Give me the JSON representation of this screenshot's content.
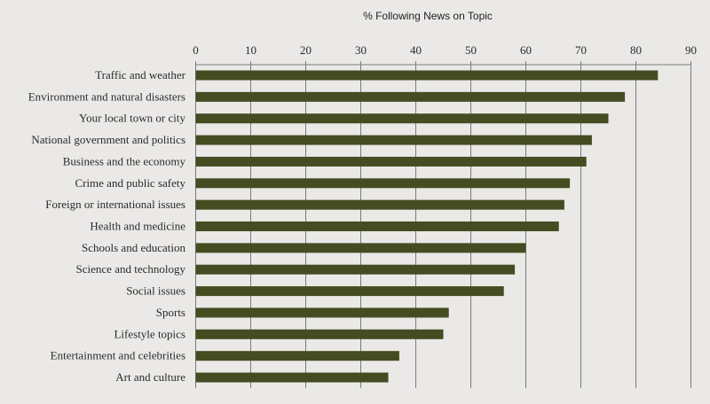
{
  "chart_data": {
    "type": "bar",
    "orientation": "horizontal",
    "title": "% Following News on Topic",
    "xlabel": "",
    "ylabel": "",
    "xlim": [
      0,
      90
    ],
    "xticks": [
      0,
      10,
      20,
      30,
      40,
      50,
      60,
      70,
      80,
      90
    ],
    "grid": true,
    "categories": [
      "Traffic and weather",
      "Environment and natural disasters",
      "Your local town or city",
      "National government and politics",
      "Business and the economy",
      "Crime and public safety",
      "Foreign or international issues",
      "Health and medicine",
      "Schools and education",
      "Science and technology",
      "Social issues",
      "Sports",
      "Lifestyle topics",
      "Entertainment and celebrities",
      "Art and culture"
    ],
    "values": [
      84,
      78,
      75,
      72,
      71,
      68,
      67,
      66,
      60,
      58,
      56,
      46,
      45,
      37,
      35
    ],
    "colors": {
      "bar": "#464c21",
      "grid": "#7a7a7a",
      "background": "#ebe9e7"
    }
  }
}
